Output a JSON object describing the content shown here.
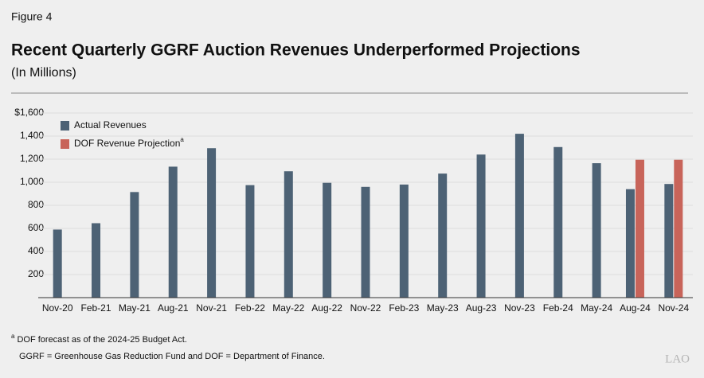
{
  "chart_data": {
    "type": "bar",
    "figure_label": "Figure 4",
    "title": "Recent Quarterly GGRF Auction Revenues Underperformed Projections",
    "subtitle": "(In Millions)",
    "categories": [
      "Nov-20",
      "Feb-21",
      "May-21",
      "Aug-21",
      "Nov-21",
      "Feb-22",
      "May-22",
      "Aug-22",
      "Nov-22",
      "Feb-23",
      "May-23",
      "Aug-23",
      "Nov-23",
      "Feb-24",
      "May-24",
      "Aug-24",
      "Nov-24"
    ],
    "series": [
      {
        "name": "Actual Revenues",
        "color": "#4d6275",
        "values": [
          590,
          645,
          915,
          1135,
          1295,
          975,
          1095,
          995,
          960,
          980,
          1075,
          1240,
          1420,
          1305,
          1165,
          940,
          985
        ]
      },
      {
        "name": "DOF Revenue Projection",
        "name_marker": "a",
        "color": "#c8645a",
        "values": [
          null,
          null,
          null,
          null,
          null,
          null,
          null,
          null,
          null,
          null,
          null,
          null,
          null,
          null,
          null,
          1195,
          1195
        ]
      }
    ],
    "ylim": [
      0,
      1600
    ],
    "yticks": [
      200,
      400,
      600,
      800,
      {
        "value": 1000,
        "label": "1,000"
      },
      {
        "value": 1200,
        "label": "1,200"
      },
      {
        "value": 1400,
        "label": "1,400"
      },
      {
        "value": 1600,
        "label": "$1,600"
      }
    ],
    "grid": true,
    "legend": "top-left",
    "footnotes": [
      {
        "marker": "a",
        "text": "DOF forecast as of the 2024-25 Budget Act."
      }
    ],
    "note": "GGRF = Greenhouse Gas Reduction Fund and DOF = Department of Finance.",
    "source_logo": "LAO"
  }
}
